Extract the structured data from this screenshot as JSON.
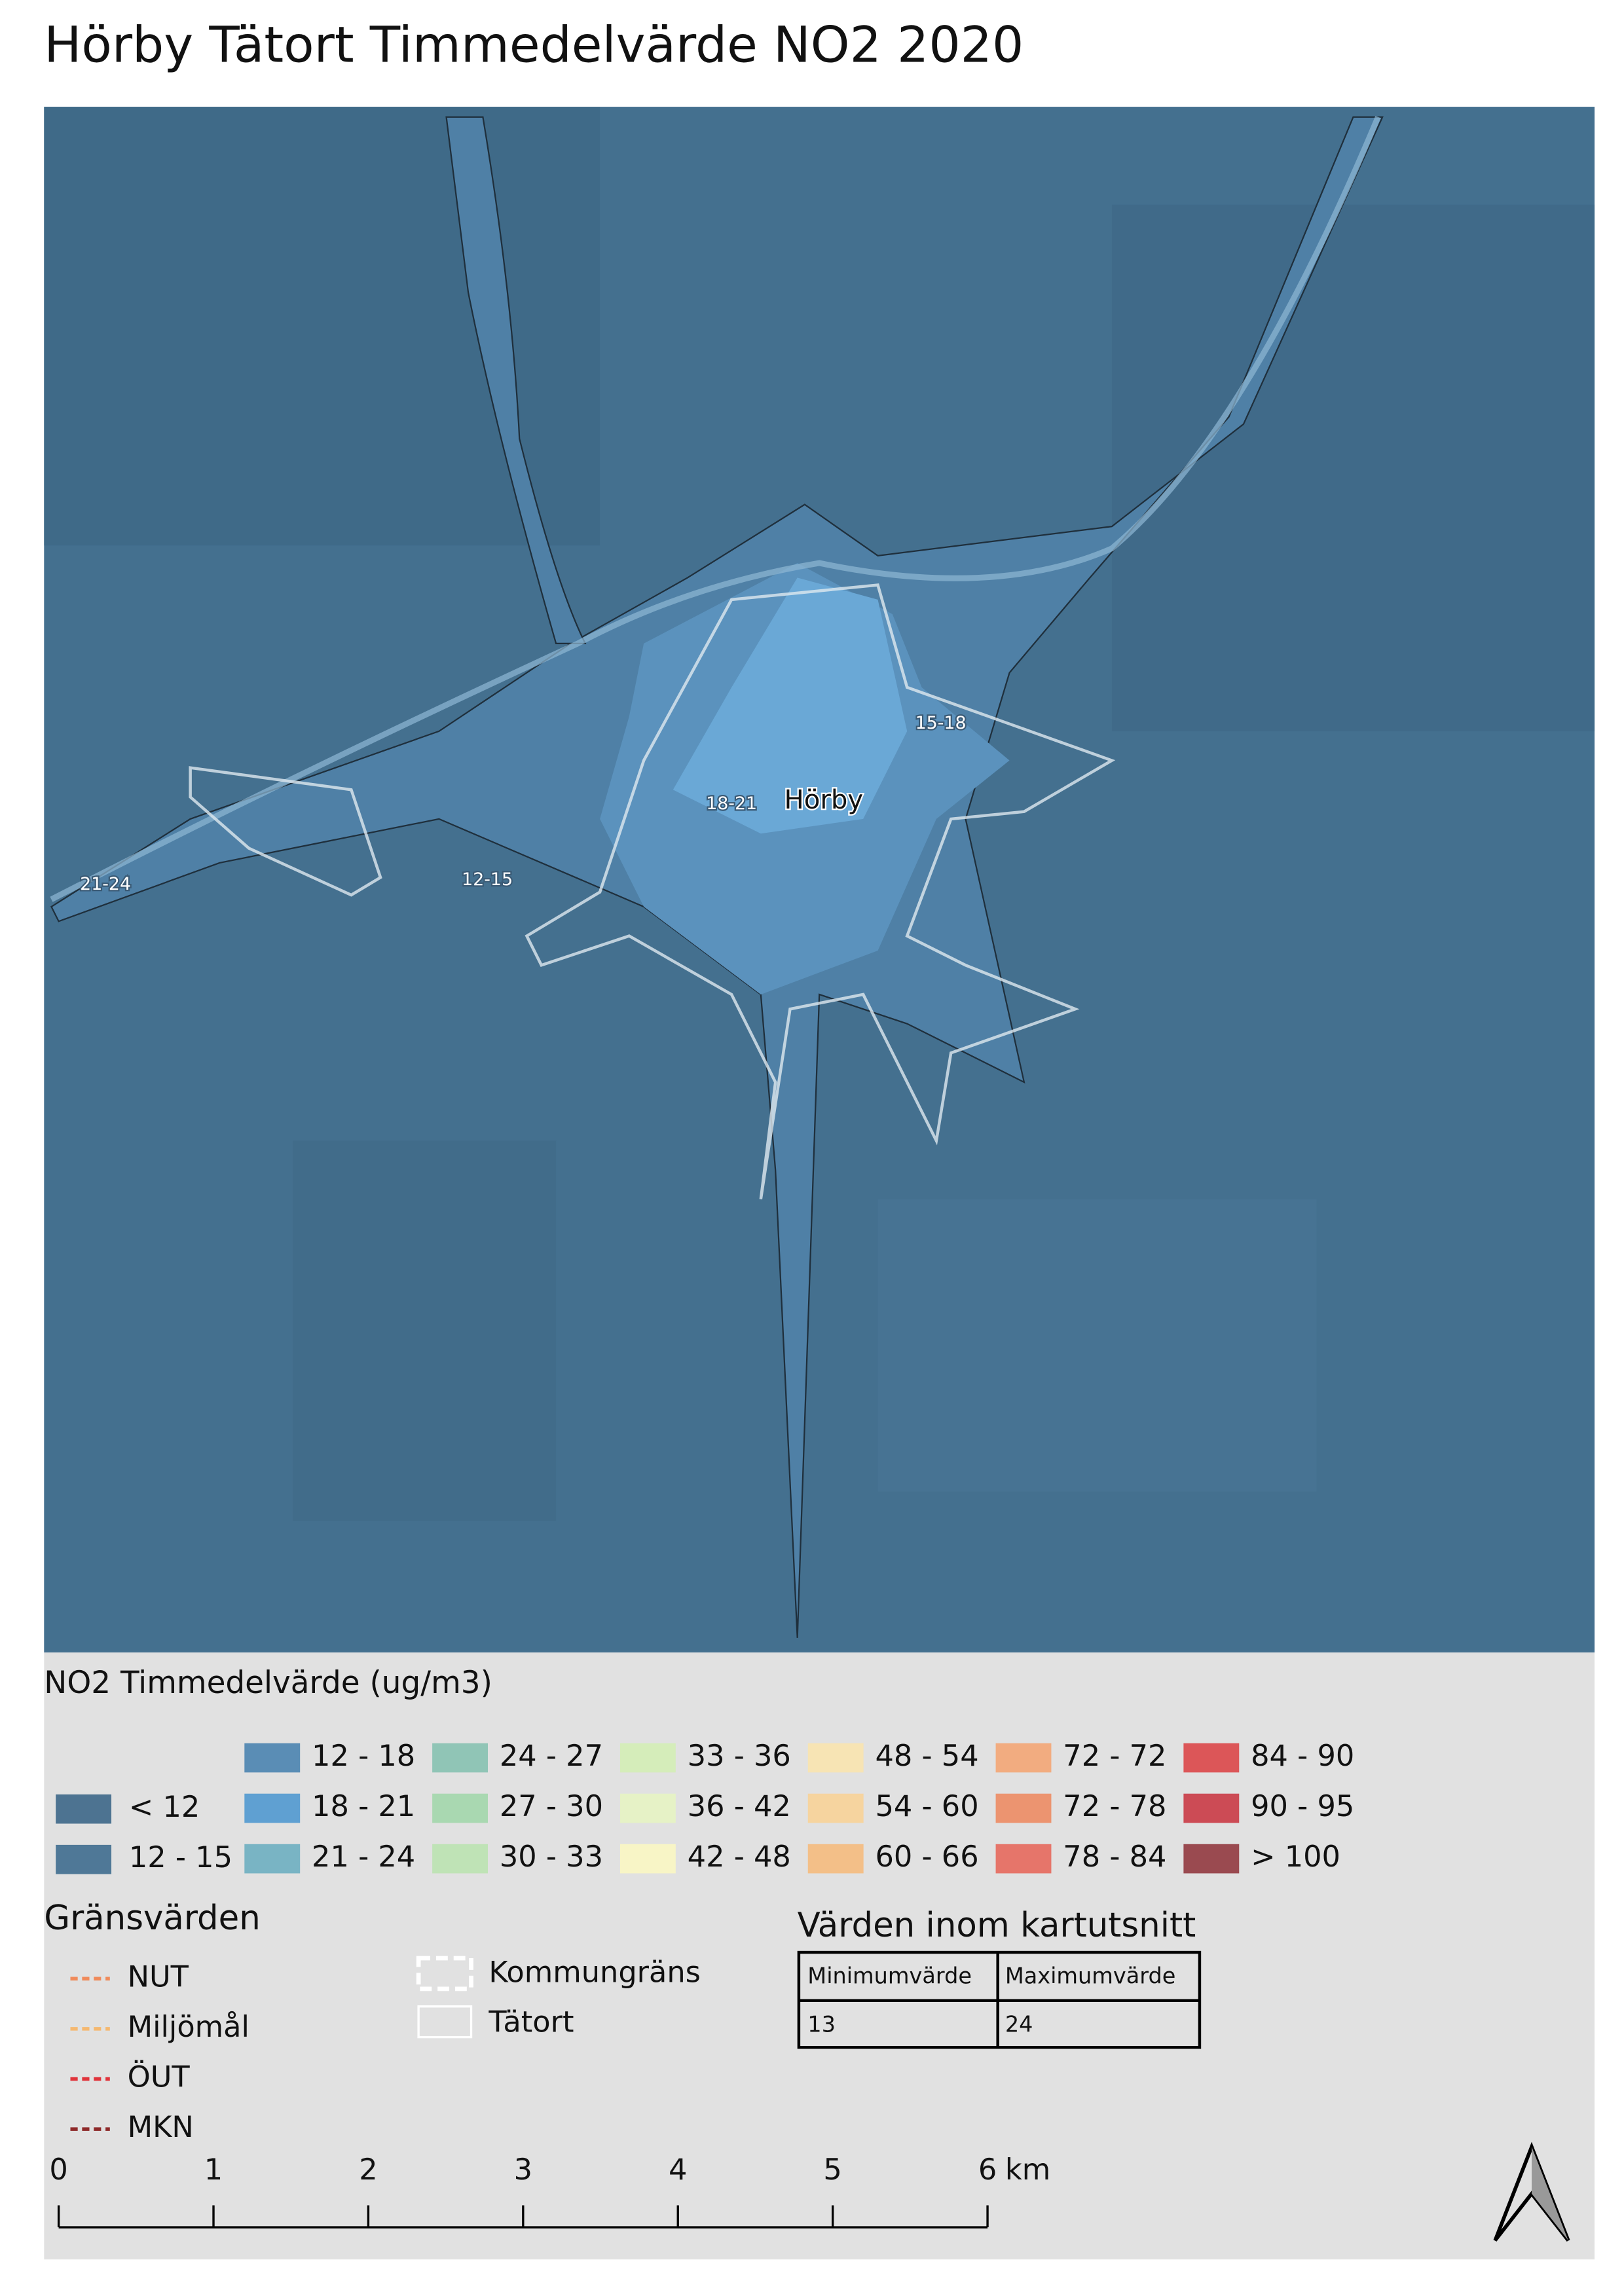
{
  "title": "Hörby Tätort Timmedelvärde NO2 2020",
  "map": {
    "labels": [
      "21-24",
      "12-15",
      "18-21",
      "Hörby",
      "15-18"
    ]
  },
  "legend": {
    "title": "NO2 Timmedelvärde (ug/m3)",
    "classes": [
      {
        "label": "< 12",
        "color": "#4d7391"
      },
      {
        "label": "12 - 15",
        "color": "#4f7897"
      },
      {
        "label": "12 - 18",
        "color": "#5a8db5"
      },
      {
        "label": "18 - 21",
        "color": "#5fa0d2"
      },
      {
        "label": "21 - 24",
        "color": "#79b4c4"
      },
      {
        "label": "24 - 27",
        "color": "#90c5b6"
      },
      {
        "label": "27 - 30",
        "color": "#a9d8b1"
      },
      {
        "label": "30 - 33",
        "color": "#bfe3b6"
      },
      {
        "label": "33 - 36",
        "color": "#d5edba"
      },
      {
        "label": "36 - 42",
        "color": "#e6f2c6"
      },
      {
        "label": "42 - 48",
        "color": "#f8f5c6"
      },
      {
        "label": "48 - 54",
        "color": "#f7e4b4"
      },
      {
        "label": "54 - 60",
        "color": "#f6d49f"
      },
      {
        "label": "60 - 66",
        "color": "#f3bf88"
      },
      {
        "label": "72 - 72",
        "color": "#f2ac80"
      },
      {
        "label": "72 - 78",
        "color": "#ec9470"
      },
      {
        "label": "78 - 84",
        "color": "#e6756a"
      },
      {
        "label": "84 - 90",
        "color": "#dc5658"
      },
      {
        "label": "90 - 95",
        "color": "#cc4b55"
      },
      {
        "label": "> 100",
        "color": "#9a4a50"
      }
    ]
  },
  "limits": {
    "title": "Gränsvärden",
    "items": [
      {
        "label": "NUT",
        "color": "#f08a5a"
      },
      {
        "label": "Miljömål",
        "color": "#f5b870"
      },
      {
        "label": "ÖUT",
        "color": "#e0333a"
      },
      {
        "label": "MKN",
        "color": "#8e2a2a"
      }
    ]
  },
  "boundaries": {
    "items": [
      "Kommungräns",
      "Tätort"
    ]
  },
  "extent_table": {
    "title": "Värden inom kartutsnitt",
    "header": [
      "Minimumvärde",
      "Maximumvärde"
    ],
    "values": [
      13,
      24
    ]
  },
  "scalebar": {
    "ticks": [
      0,
      1,
      2,
      3,
      4,
      5,
      6
    ],
    "unit": "km"
  }
}
